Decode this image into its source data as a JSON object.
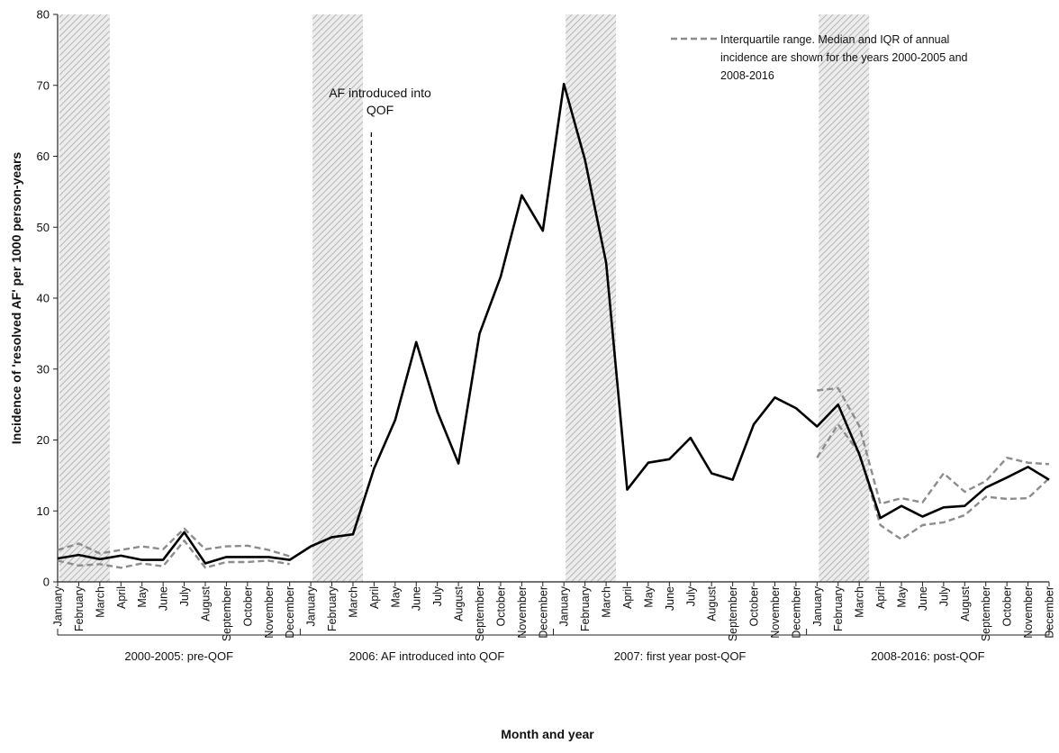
{
  "chart_data": {
    "type": "line",
    "ylabel": "Incidence of 'resolved AF' per 1000 person-years",
    "xlabel": "Month and year",
    "ylim": [
      0,
      80
    ],
    "yticks": [
      0,
      10,
      20,
      30,
      40,
      50,
      60,
      70,
      80
    ],
    "grid": false,
    "months": [
      "January",
      "February",
      "March",
      "April",
      "May",
      "June",
      "July",
      "August",
      "September",
      "October",
      "November",
      "December"
    ],
    "groups": [
      "2000-2005: pre-QOF",
      "2006: AF introduced into QOF",
      "2007: first year post-QOF",
      "2008-2016: post-QOF"
    ],
    "shaded_months": [
      "January",
      "February",
      "March"
    ],
    "annotation": {
      "text_lines": [
        "AF introduced into",
        "QOF"
      ],
      "at_month_index": 15
    },
    "legend": {
      "position": "top-right",
      "label_lines": [
        "Interquartile range. Median and IQR of annual",
        "incidence are shown for the years 2000-2005 and",
        "2008-2016"
      ]
    },
    "series": [
      {
        "role": "median",
        "style": "solid",
        "color": "#000000",
        "values": [
          3.3,
          3.8,
          3.2,
          3.7,
          3.1,
          3.1,
          7.0,
          2.6,
          3.5,
          3.5,
          3.5,
          3.1,
          5.0,
          6.3,
          6.7,
          16.0,
          22.8,
          33.8,
          24.0,
          16.7,
          35.0,
          43.0,
          54.5,
          49.5,
          70.2,
          59.5,
          45.0,
          13.0,
          16.8,
          17.3,
          20.3,
          15.3,
          14.4,
          22.2,
          26.0,
          24.5,
          21.9,
          25.0,
          18.0,
          9.0,
          10.7,
          9.2,
          10.5,
          10.7,
          13.3,
          14.7,
          16.2,
          14.4
        ]
      },
      {
        "role": "upper-quartile",
        "style": "dashed",
        "color": "#8c8c8c",
        "values": [
          4.5,
          5.4,
          4.0,
          4.5,
          5.0,
          4.6,
          7.5,
          4.6,
          5.0,
          5.1,
          4.5,
          3.6,
          null,
          null,
          null,
          null,
          null,
          null,
          null,
          null,
          null,
          null,
          null,
          null,
          null,
          null,
          null,
          null,
          null,
          null,
          null,
          null,
          null,
          null,
          null,
          null,
          27.0,
          27.3,
          22.0,
          11.0,
          11.8,
          11.2,
          15.3,
          12.7,
          14.2,
          17.5,
          16.8,
          16.6
        ]
      },
      {
        "role": "lower-quartile",
        "style": "dashed",
        "color": "#8c8c8c",
        "values": [
          3.0,
          2.3,
          2.5,
          2.0,
          2.6,
          2.2,
          5.8,
          2.0,
          2.8,
          2.8,
          3.0,
          2.5,
          null,
          null,
          null,
          null,
          null,
          null,
          null,
          null,
          null,
          null,
          null,
          null,
          null,
          null,
          null,
          null,
          null,
          null,
          null,
          null,
          null,
          null,
          null,
          null,
          17.5,
          22.2,
          18.2,
          8.0,
          6.0,
          8.0,
          8.4,
          9.4,
          12.0,
          11.7,
          11.8,
          14.6
        ]
      }
    ]
  }
}
